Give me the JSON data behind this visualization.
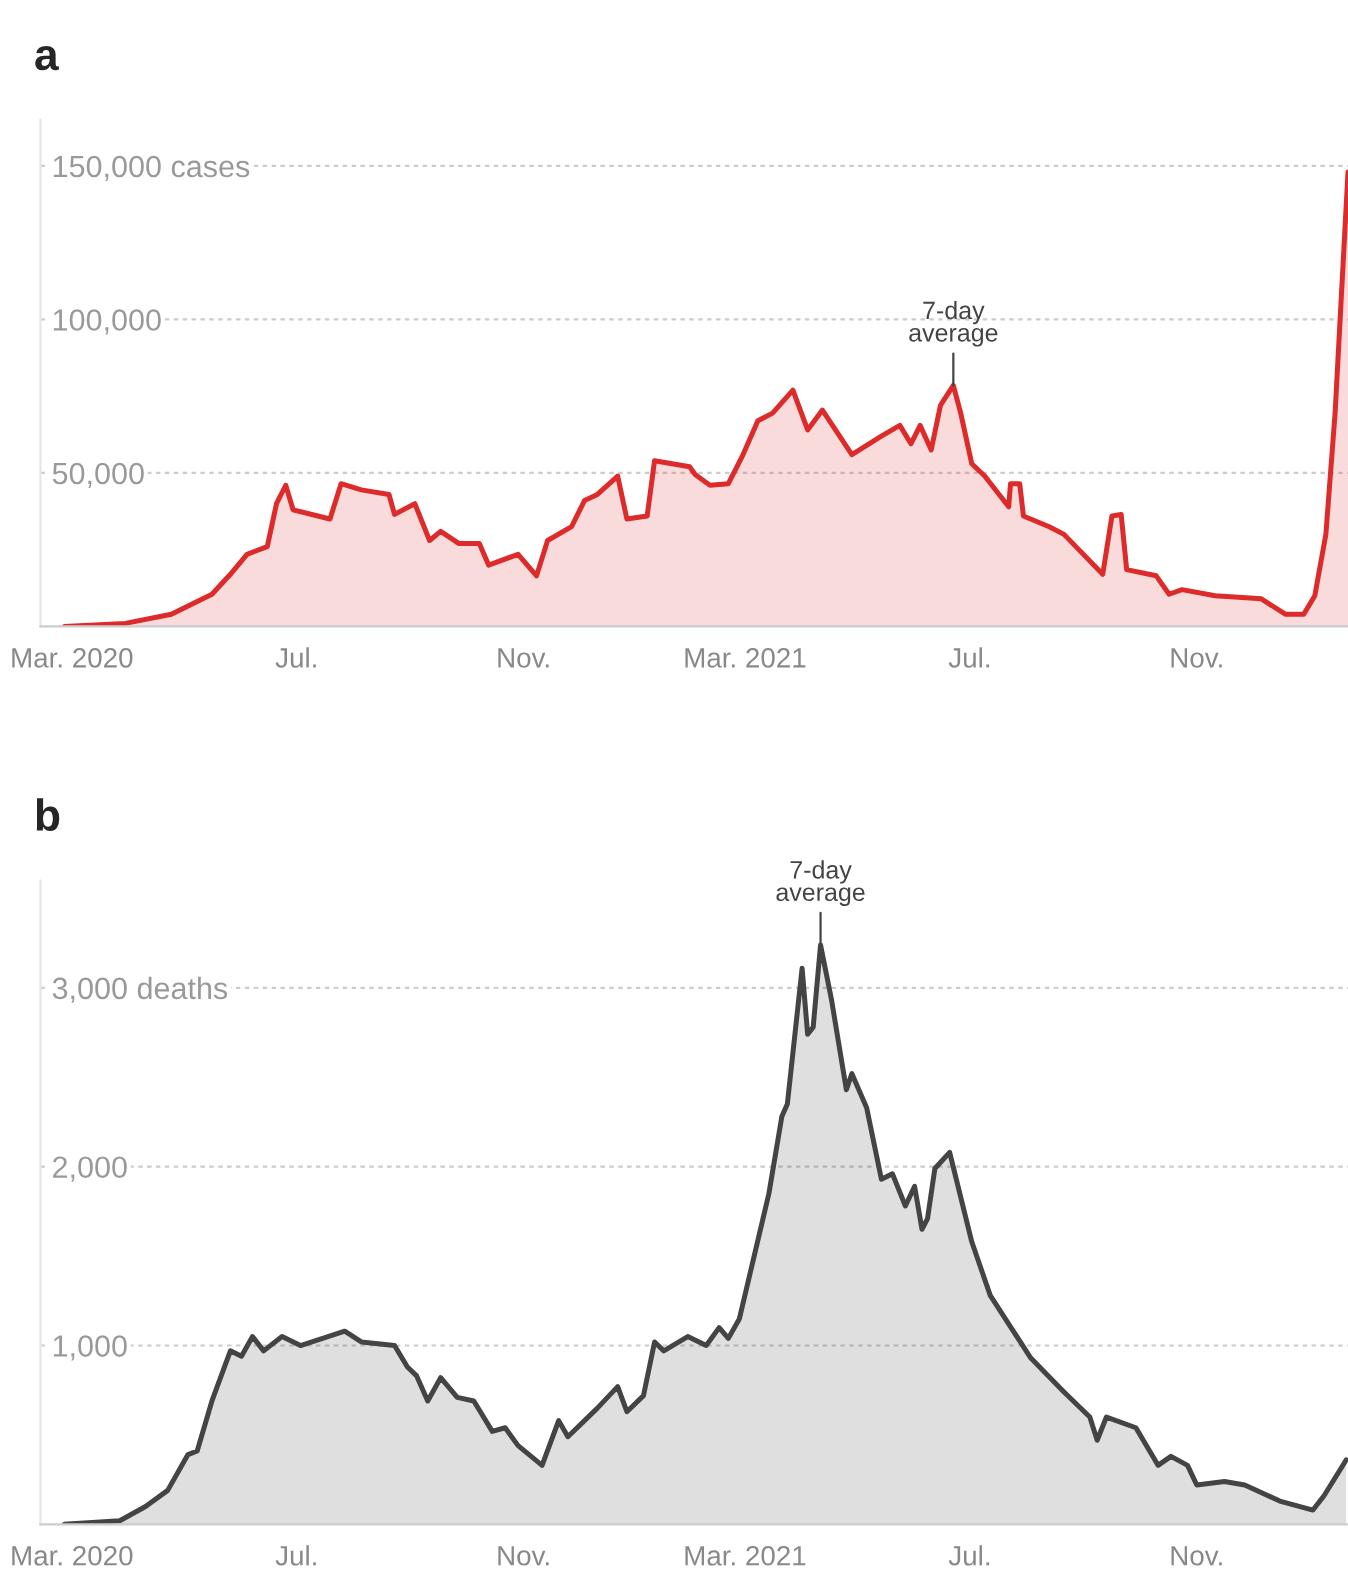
{
  "chart_data": [
    {
      "type": "area",
      "title": "a",
      "grid": "y",
      "line_style": "solid",
      "x": [
        "2020-02-26",
        "2020-03-30",
        "2020-04-24",
        "2020-05-16",
        "2020-05-26",
        "2020-06-04",
        "2020-06-15",
        "2020-06-20",
        "2020-06-25",
        "2020-06-29",
        "2020-07-19",
        "2020-07-25",
        "2020-08-05",
        "2020-08-20",
        "2020-08-23",
        "2020-09-03",
        "2020-09-11",
        "2020-09-17",
        "2020-09-27",
        "2020-10-08",
        "2020-10-13",
        "2020-10-29",
        "2020-11-08",
        "2020-11-14",
        "2020-11-27",
        "2020-12-04",
        "2020-12-11",
        "2020-12-22",
        "2020-12-27",
        "2021-01-07",
        "2021-01-11",
        "2021-01-30",
        "2021-02-02",
        "2021-02-10",
        "2021-02-20",
        "2021-02-28",
        "2021-03-08",
        "2021-03-16",
        "2021-03-27",
        "2021-04-04",
        "2021-04-12",
        "2021-04-28",
        "2021-05-14",
        "2021-05-24",
        "2021-05-30",
        "2021-06-04",
        "2021-06-10",
        "2021-06-15",
        "2021-06-22",
        "2021-06-26",
        "2021-07-02",
        "2021-07-09",
        "2021-07-22",
        "2021-07-23",
        "2021-07-28",
        "2021-07-30",
        "2021-08-13",
        "2021-08-21",
        "2021-09-11",
        "2021-09-16",
        "2021-09-21",
        "2021-09-24",
        "2021-10-10",
        "2021-10-17",
        "2021-10-24",
        "2021-11-11",
        "2021-12-06",
        "2021-12-19",
        "2021-12-29",
        "2022-01-04",
        "2022-01-10",
        "2022-01-15",
        "2022-01-22"
      ],
      "series": [
        {
          "color": "#dd2a2a",
          "values": [
            0,
            1000,
            4000,
            10500,
            17000,
            23500,
            26000,
            40000,
            46000,
            38000,
            35000,
            46500,
            44500,
            43000,
            36500,
            40000,
            28000,
            31000,
            27000,
            27000,
            20000,
            23500,
            16500,
            28000,
            32500,
            41000,
            43000,
            49000,
            35000,
            36000,
            54000,
            52000,
            49500,
            46000,
            46500,
            56000,
            67000,
            69500,
            77000,
            64000,
            70500,
            56000,
            62000,
            65500,
            59500,
            65500,
            57500,
            72000,
            78500,
            69500,
            53000,
            49000,
            39000,
            46500,
            46500,
            36000,
            32500,
            30000,
            17000,
            36000,
            36500,
            18500,
            16500,
            10500,
            12000,
            10000,
            9000,
            4000,
            4000,
            10000,
            30000,
            69500,
            148000
          ]
        }
      ],
      "xlim": [
        "2020-02-13",
        "2022-01-22"
      ],
      "xticks": [
        {
          "value": "2020-03-01",
          "label": "Mar. 2020"
        },
        {
          "value": "2020-07-01",
          "label": "Jul."
        },
        {
          "value": "2020-11-01",
          "label": "Nov."
        },
        {
          "value": "2021-03-01",
          "label": "Mar. 2021"
        },
        {
          "value": "2021-07-01",
          "label": "Jul."
        },
        {
          "value": "2021-11-01",
          "label": "Nov."
        }
      ],
      "ylim": [
        0,
        165000
      ],
      "yticks": [
        {
          "value": 50000,
          "label": "50,000"
        },
        {
          "value": 100000,
          "label": "100,000"
        },
        {
          "value": 150000,
          "label": "150,000 cases"
        }
      ],
      "annotations": [
        {
          "text": "7-day\naverage",
          "x": "2021-06-22",
          "y": 78500
        }
      ]
    },
    {
      "type": "area",
      "title": "b",
      "grid": "y",
      "line_style": "solid",
      "x": [
        "2020-02-26",
        "2020-03-27",
        "2020-04-10",
        "2020-04-22",
        "2020-05-03",
        "2020-05-08",
        "2020-05-16",
        "2020-05-26",
        "2020-06-01",
        "2020-06-07",
        "2020-06-13",
        "2020-06-23",
        "2020-07-03",
        "2020-07-15",
        "2020-07-27",
        "2020-08-05",
        "2020-08-23",
        "2020-08-30",
        "2020-09-04",
        "2020-09-10",
        "2020-09-17",
        "2020-09-26",
        "2020-10-05",
        "2020-10-15",
        "2020-10-22",
        "2020-10-29",
        "2020-11-11",
        "2020-11-20",
        "2020-11-25",
        "2020-12-11",
        "2020-12-22",
        "2020-12-27",
        "2021-01-05",
        "2021-01-11",
        "2021-01-16",
        "2021-01-29",
        "2021-02-08",
        "2021-02-15",
        "2021-02-20",
        "2021-02-26",
        "2021-03-06",
        "2021-03-14",
        "2021-03-21",
        "2021-03-24",
        "2021-04-01",
        "2021-04-04",
        "2021-04-07",
        "2021-04-11",
        "2021-04-17",
        "2021-04-25",
        "2021-04-28",
        "2021-05-06",
        "2021-05-14",
        "2021-05-20",
        "2021-05-27",
        "2021-06-01",
        "2021-06-05",
        "2021-06-08",
        "2021-06-12",
        "2021-06-20",
        "2021-07-02",
        "2021-07-12",
        "2021-08-03",
        "2021-08-21",
        "2021-09-04",
        "2021-09-08",
        "2021-09-13",
        "2021-09-29",
        "2021-10-11",
        "2021-10-18",
        "2021-10-27",
        "2021-11-01",
        "2021-11-16",
        "2021-11-27",
        "2021-12-16",
        "2022-01-03",
        "2022-01-09",
        "2022-01-21"
      ],
      "series": [
        {
          "color": "#444444",
          "values": [
            0,
            20,
            100,
            190,
            390,
            410,
            690,
            970,
            940,
            1050,
            970,
            1050,
            1000,
            1040,
            1080,
            1020,
            1000,
            880,
            830,
            690,
            820,
            710,
            690,
            520,
            540,
            440,
            330,
            580,
            490,
            650,
            770,
            630,
            720,
            1020,
            970,
            1050,
            1000,
            1100,
            1040,
            1150,
            1500,
            1850,
            2280,
            2350,
            3110,
            2740,
            2780,
            3240,
            2930,
            2430,
            2520,
            2330,
            1930,
            1960,
            1780,
            1890,
            1650,
            1710,
            1990,
            2080,
            1580,
            1280,
            930,
            740,
            600,
            470,
            600,
            540,
            330,
            380,
            330,
            220,
            240,
            220,
            130,
            80,
            160,
            360
          ]
        }
      ],
      "xlim": [
        "2020-02-13",
        "2022-01-22"
      ],
      "xticks": [
        {
          "value": "2020-03-01",
          "label": "Mar. 2020"
        },
        {
          "value": "2020-07-01",
          "label": "Jul."
        },
        {
          "value": "2020-11-01",
          "label": "Nov."
        },
        {
          "value": "2021-03-01",
          "label": "Mar. 2021"
        },
        {
          "value": "2021-07-01",
          "label": "Jul."
        },
        {
          "value": "2021-11-01",
          "label": "Nov."
        }
      ],
      "ylim": [
        0,
        3600
      ],
      "yticks": [
        {
          "value": 1000,
          "label": "1,000"
        },
        {
          "value": 2000,
          "label": "2,000"
        },
        {
          "value": 3000,
          "label": "3,000 deaths"
        }
      ],
      "annotations": [
        {
          "text": "7-day\naverage",
          "x": "2021-04-11",
          "y": 3240
        }
      ]
    }
  ]
}
